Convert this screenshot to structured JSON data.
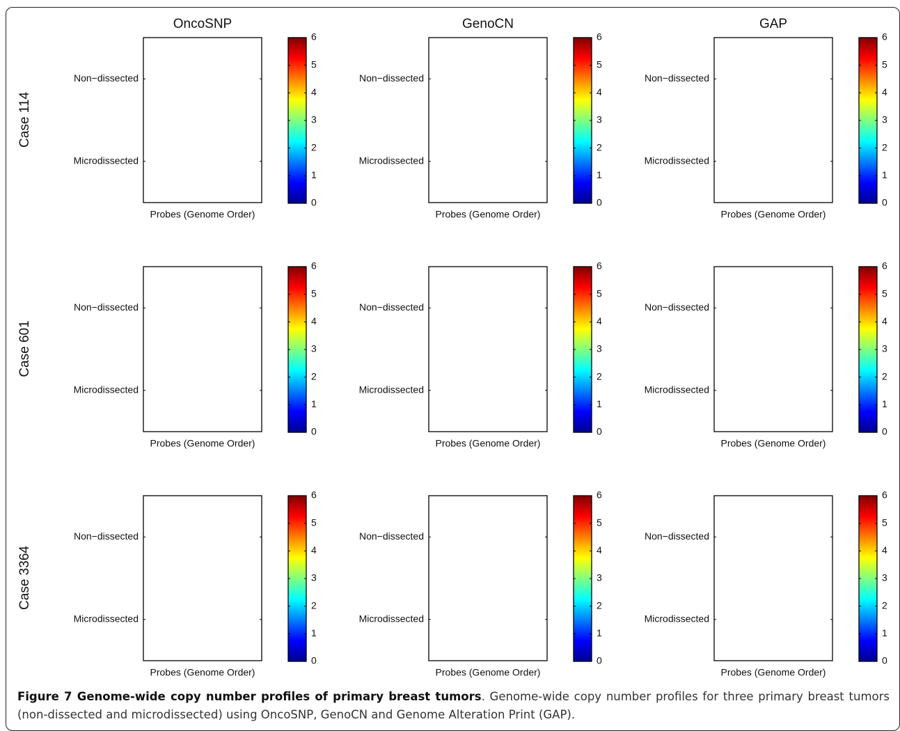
{
  "column_titles": [
    "OncoSNP",
    "GenoCN",
    "GAP"
  ],
  "row_titles": [
    "Case 114",
    "Case 601",
    "Case 3364"
  ],
  "chart_data": [
    {
      "type": "heatmap",
      "categories": [
        "Non−dissected",
        "Microdissected"
      ],
      "xlabel": "Probes (Genome Order)",
      "clim": [
        0,
        6
      ],
      "cticks": [
        0,
        1,
        2,
        3,
        4,
        5,
        6
      ],
      "colormap": "jet"
    },
    {
      "type": "heatmap",
      "categories": [
        "Non−dissected",
        "Microdissected"
      ],
      "xlabel": "Probes (Genome Order)",
      "clim": [
        0,
        6
      ],
      "cticks": [
        0,
        1,
        2,
        3,
        4,
        5,
        6
      ],
      "colormap": "jet"
    },
    {
      "type": "heatmap",
      "categories": [
        "Non−dissected",
        "Microdissected"
      ],
      "xlabel": "Probes (Genome Order)",
      "clim": [
        0,
        6
      ],
      "cticks": [
        0,
        1,
        2,
        3,
        4,
        5,
        6
      ],
      "colormap": "jet"
    },
    {
      "type": "heatmap",
      "categories": [
        "Non−dissected",
        "Microdissected"
      ],
      "xlabel": "Probes (Genome Order)",
      "clim": [
        0,
        6
      ],
      "cticks": [
        0,
        1,
        2,
        3,
        4,
        5,
        6
      ],
      "colormap": "jet"
    },
    {
      "type": "heatmap",
      "categories": [
        "Non−dissected",
        "Microdissected"
      ],
      "xlabel": "Probes (Genome Order)",
      "clim": [
        0,
        6
      ],
      "cticks": [
        0,
        1,
        2,
        3,
        4,
        5,
        6
      ],
      "colormap": "jet"
    },
    {
      "type": "heatmap",
      "categories": [
        "Non−dissected",
        "Microdissected"
      ],
      "xlabel": "Probes (Genome Order)",
      "clim": [
        0,
        6
      ],
      "cticks": [
        0,
        1,
        2,
        3,
        4,
        5,
        6
      ],
      "colormap": "jet"
    },
    {
      "type": "heatmap",
      "categories": [
        "Non−dissected",
        "Microdissected"
      ],
      "xlabel": "Probes (Genome Order)",
      "clim": [
        0,
        6
      ],
      "cticks": [
        0,
        1,
        2,
        3,
        4,
        5,
        6
      ],
      "colormap": "jet"
    },
    {
      "type": "heatmap",
      "categories": [
        "Non−dissected",
        "Microdissected"
      ],
      "xlabel": "Probes (Genome Order)",
      "clim": [
        0,
        6
      ],
      "cticks": [
        0,
        1,
        2,
        3,
        4,
        5,
        6
      ],
      "colormap": "jet"
    },
    {
      "type": "heatmap",
      "categories": [
        "Non−dissected",
        "Microdissected"
      ],
      "xlabel": "Probes (Genome Order)",
      "clim": [
        0,
        6
      ],
      "cticks": [
        0,
        1,
        2,
        3,
        4,
        5,
        6
      ],
      "colormap": "jet"
    }
  ],
  "caption": {
    "bold": "Figure 7 Genome-wide copy number profiles of primary breast tumors",
    "text": ". Genome-wide copy number profiles for three primary breast tumors (non-dissected and microdissected) using OncoSNP, GenoCN and Genome Alteration Print (GAP)."
  }
}
